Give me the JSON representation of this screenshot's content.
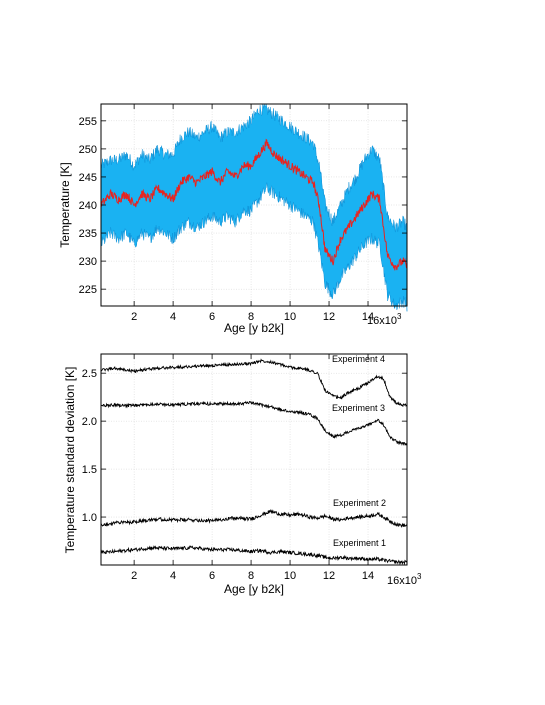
{
  "chart_data": [
    {
      "type": "area",
      "xlabel": "Age [y b2k]",
      "ylabel": "Temperature [K]",
      "x_multiplier_label": "16x10",
      "x_multiplier_exp": "3",
      "xlim": [
        0.3,
        16.0
      ],
      "ylim": [
        222,
        258
      ],
      "xticks": [
        2,
        4,
        6,
        8,
        10,
        12,
        14
      ],
      "yticks": [
        225,
        230,
        235,
        240,
        245,
        250,
        255
      ],
      "grid": true,
      "colors": {
        "mean": "#e8231f",
        "band": "#1ab2f2",
        "band_edge": "#0a8fd6"
      },
      "series": [
        {
          "role": "mean",
          "x": [
            0.3,
            0.8,
            1.2,
            1.6,
            2.0,
            2.4,
            2.8,
            3.2,
            3.6,
            4.0,
            4.4,
            4.8,
            5.2,
            5.6,
            6.0,
            6.4,
            6.8,
            7.2,
            7.6,
            8.0,
            8.4,
            8.8,
            9.2,
            9.6,
            10.0,
            10.4,
            10.8,
            11.2,
            11.5,
            11.8,
            12.2,
            12.6,
            13.0,
            13.4,
            13.8,
            14.2,
            14.6,
            15.0,
            15.4,
            15.8,
            16.0
          ],
          "y": [
            240,
            242,
            241,
            242,
            240,
            242,
            241,
            243,
            242,
            241,
            244,
            245,
            244,
            245,
            246,
            244,
            246,
            245,
            247,
            247,
            249,
            251,
            249,
            248,
            247,
            246,
            245,
            244,
            240,
            232,
            230,
            234,
            236,
            238,
            240,
            242,
            241,
            231,
            229,
            230,
            229
          ]
        },
        {
          "role": "upper",
          "x": [
            0.3,
            0.8,
            1.2,
            1.6,
            2.0,
            2.4,
            2.8,
            3.2,
            3.6,
            4.0,
            4.4,
            4.8,
            5.2,
            5.6,
            6.0,
            6.4,
            6.8,
            7.2,
            7.6,
            8.0,
            8.4,
            8.8,
            9.2,
            9.6,
            10.0,
            10.4,
            10.8,
            11.2,
            11.5,
            11.8,
            12.2,
            12.6,
            13.0,
            13.4,
            13.8,
            14.2,
            14.6,
            15.0,
            15.4,
            15.8,
            16.0
          ],
          "y": [
            247,
            248,
            248,
            249,
            247,
            249,
            248,
            250,
            249,
            249,
            252,
            253,
            252,
            253,
            254,
            252,
            253,
            253,
            254,
            255,
            257,
            257,
            256,
            255,
            254,
            253,
            252,
            251,
            247,
            240,
            237,
            240,
            243,
            245,
            248,
            250,
            248,
            238,
            236,
            237,
            236
          ]
        },
        {
          "role": "lower",
          "x": [
            0.3,
            0.8,
            1.2,
            1.6,
            2.0,
            2.4,
            2.8,
            3.2,
            3.6,
            4.0,
            4.4,
            4.8,
            5.2,
            5.6,
            6.0,
            6.4,
            6.8,
            7.2,
            7.6,
            8.0,
            8.4,
            8.8,
            9.2,
            9.6,
            10.0,
            10.4,
            10.8,
            11.2,
            11.5,
            11.8,
            12.2,
            12.6,
            13.0,
            13.4,
            13.8,
            14.2,
            14.6,
            15.0,
            15.4,
            15.8,
            16.0
          ],
          "y": [
            233,
            235,
            234,
            235,
            233,
            235,
            234,
            236,
            235,
            234,
            236,
            237,
            236,
            237,
            238,
            237,
            238,
            237,
            239,
            239,
            241,
            243,
            242,
            241,
            240,
            239,
            238,
            237,
            232,
            226,
            224,
            227,
            229,
            231,
            233,
            234,
            233,
            224,
            222,
            223,
            222
          ]
        }
      ]
    },
    {
      "type": "line",
      "xlabel": "Age [y b2k]",
      "ylabel": "Temperature standard deviation [K]",
      "x_multiplier_label": "16x10",
      "x_multiplier_exp": "3",
      "xlim": [
        0.3,
        16.0
      ],
      "ylim": [
        0.5,
        2.7
      ],
      "xticks": [
        2,
        4,
        6,
        8,
        10,
        12,
        14
      ],
      "yticks": [
        1.0,
        1.5,
        2.0,
        2.5
      ],
      "ytick_labels": [
        "1.0",
        "1.5",
        "2.0",
        "2.5"
      ],
      "grid": true,
      "line_color": "#000000",
      "series": [
        {
          "name": "Experiment 4",
          "x": [
            0.3,
            1.0,
            2.0,
            3.0,
            4.0,
            5.0,
            6.0,
            7.0,
            8.0,
            8.5,
            9.0,
            9.5,
            10.0,
            10.5,
            11.0,
            11.4,
            11.8,
            12.2,
            12.6,
            13.0,
            13.5,
            14.0,
            14.5,
            14.8,
            15.1,
            15.5,
            16.0
          ],
          "y": [
            2.53,
            2.55,
            2.52,
            2.55,
            2.56,
            2.57,
            2.58,
            2.59,
            2.6,
            2.63,
            2.62,
            2.59,
            2.56,
            2.55,
            2.53,
            2.5,
            2.32,
            2.26,
            2.24,
            2.3,
            2.34,
            2.4,
            2.47,
            2.44,
            2.26,
            2.18,
            2.16
          ]
        },
        {
          "name": "Experiment 3",
          "x": [
            0.3,
            1.0,
            2.0,
            3.0,
            4.0,
            5.0,
            6.0,
            7.0,
            8.0,
            8.5,
            9.0,
            9.5,
            10.0,
            10.5,
            11.0,
            11.4,
            11.8,
            12.2,
            12.6,
            13.0,
            13.5,
            14.0,
            14.5,
            14.8,
            15.1,
            15.5,
            16.0
          ],
          "y": [
            2.16,
            2.17,
            2.16,
            2.18,
            2.17,
            2.18,
            2.18,
            2.18,
            2.19,
            2.17,
            2.15,
            2.12,
            2.1,
            2.09,
            2.07,
            2.03,
            1.9,
            1.84,
            1.85,
            1.89,
            1.92,
            1.96,
            2.01,
            1.96,
            1.84,
            1.78,
            1.76
          ]
        },
        {
          "name": "Experiment 2",
          "x": [
            0.3,
            1.0,
            2.0,
            3.0,
            4.0,
            5.0,
            6.0,
            7.0,
            8.0,
            8.5,
            9.0,
            9.5,
            10.0,
            10.5,
            11.0,
            11.4,
            11.8,
            12.2,
            12.6,
            13.0,
            13.5,
            14.0,
            14.5,
            14.8,
            15.1,
            15.5,
            16.0
          ],
          "y": [
            0.92,
            0.94,
            0.95,
            0.98,
            0.97,
            0.97,
            0.96,
            0.99,
            0.98,
            1.02,
            1.06,
            1.03,
            1.02,
            1.03,
            1.0,
            0.99,
            1.01,
            0.98,
            0.97,
            0.99,
            1.0,
            1.01,
            1.03,
            1.0,
            0.96,
            0.92,
            0.91
          ]
        },
        {
          "name": "Experiment 1",
          "x": [
            0.3,
            1.0,
            2.0,
            3.0,
            4.0,
            5.0,
            6.0,
            7.0,
            8.0,
            8.5,
            9.0,
            9.5,
            10.0,
            10.5,
            11.0,
            11.4,
            11.8,
            12.2,
            12.6,
            13.0,
            13.5,
            14.0,
            14.5,
            14.8,
            15.1,
            15.5,
            16.0
          ],
          "y": [
            0.63,
            0.64,
            0.66,
            0.68,
            0.67,
            0.68,
            0.66,
            0.66,
            0.64,
            0.65,
            0.63,
            0.64,
            0.63,
            0.62,
            0.61,
            0.6,
            0.58,
            0.57,
            0.58,
            0.57,
            0.57,
            0.56,
            0.56,
            0.55,
            0.54,
            0.53,
            0.53
          ]
        }
      ]
    }
  ]
}
